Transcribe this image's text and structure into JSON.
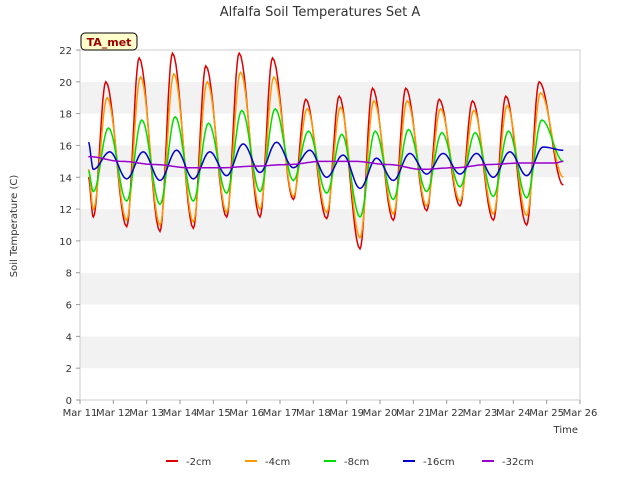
{
  "chart_data": {
    "type": "line",
    "title": "Alfalfa Soil Temperatures Set A",
    "xlabel": "Time",
    "ylabel": "Soil Temperature (C)",
    "annotation": "TA_met",
    "xlim": [
      "2024-03-11",
      "2024-03-26"
    ],
    "ylim": [
      0,
      22
    ],
    "x_ticks": [
      "Mar 11",
      "Mar 12",
      "Mar 13",
      "Mar 14",
      "Mar 15",
      "Mar 16",
      "Mar 17",
      "Mar 18",
      "Mar 19",
      "Mar 20",
      "Mar 21",
      "Mar 22",
      "Mar 23",
      "Mar 24",
      "Mar 25",
      "Mar 26"
    ],
    "y_ticks": [
      0,
      2,
      4,
      6,
      8,
      10,
      12,
      14,
      16,
      18,
      20,
      22
    ],
    "grid": true,
    "legend_position": "bottom",
    "x_start": "2024-03-11T06:00",
    "x_end": "2024-03-25T12:00",
    "series": [
      {
        "name": "-2cm",
        "color": "#dd0000",
        "min": [
          11.5,
          10.9,
          10.6,
          10.8,
          11.5,
          11.5,
          12.6,
          11.4,
          9.5,
          11.3,
          11.9,
          12.2,
          11.3,
          11.0
        ],
        "max": [
          20.0,
          21.5,
          21.8,
          21.0,
          21.8,
          21.5,
          18.9,
          19.1,
          19.6,
          19.6,
          18.9,
          18.8,
          19.1,
          20.0
        ],
        "start": 14.0,
        "end": 13.5
      },
      {
        "name": "-4cm",
        "color": "#ff9900",
        "min": [
          12.0,
          11.3,
          11.0,
          11.2,
          11.8,
          12.0,
          12.8,
          11.8,
          10.2,
          11.7,
          12.2,
          12.5,
          11.7,
          11.6
        ],
        "max": [
          19.0,
          20.3,
          20.5,
          20.0,
          20.6,
          20.3,
          18.3,
          18.4,
          18.8,
          18.8,
          18.3,
          18.2,
          18.5,
          19.3
        ],
        "start": 14.5,
        "end": 14.0
      },
      {
        "name": "-8cm",
        "color": "#00dd00",
        "min": [
          13.1,
          12.5,
          12.3,
          12.5,
          13.0,
          13.1,
          13.8,
          13.0,
          11.5,
          12.6,
          13.1,
          13.4,
          12.8,
          12.7
        ],
        "max": [
          17.1,
          17.6,
          17.8,
          17.4,
          18.2,
          18.3,
          16.9,
          16.7,
          16.9,
          17.0,
          16.8,
          16.8,
          16.9,
          17.6
        ],
        "start": 14.4,
        "end": 15.0
      },
      {
        "name": "-16cm",
        "color": "#0000cc",
        "min": [
          14.5,
          13.9,
          13.8,
          13.9,
          14.1,
          14.3,
          14.6,
          14.0,
          13.3,
          13.8,
          14.2,
          14.2,
          14.0,
          14.1
        ],
        "max": [
          15.6,
          15.6,
          15.7,
          15.6,
          16.1,
          16.2,
          15.7,
          15.4,
          15.2,
          15.5,
          15.5,
          15.5,
          15.6,
          15.9
        ],
        "start": 16.2,
        "end": 15.7
      },
      {
        "name": "-32cm",
        "color": "#9900cc",
        "points": [
          [
            0,
            15.3
          ],
          [
            1,
            15.0
          ],
          [
            2,
            14.8
          ],
          [
            3,
            14.6
          ],
          [
            4,
            14.6
          ],
          [
            5,
            14.7
          ],
          [
            6,
            14.8
          ],
          [
            7,
            15.0
          ],
          [
            8,
            15.0
          ],
          [
            9,
            14.8
          ],
          [
            10,
            14.5
          ],
          [
            11,
            14.6
          ],
          [
            12,
            14.8
          ],
          [
            13,
            14.9
          ],
          [
            14,
            14.9
          ],
          [
            14.25,
            15.0
          ]
        ]
      }
    ]
  }
}
